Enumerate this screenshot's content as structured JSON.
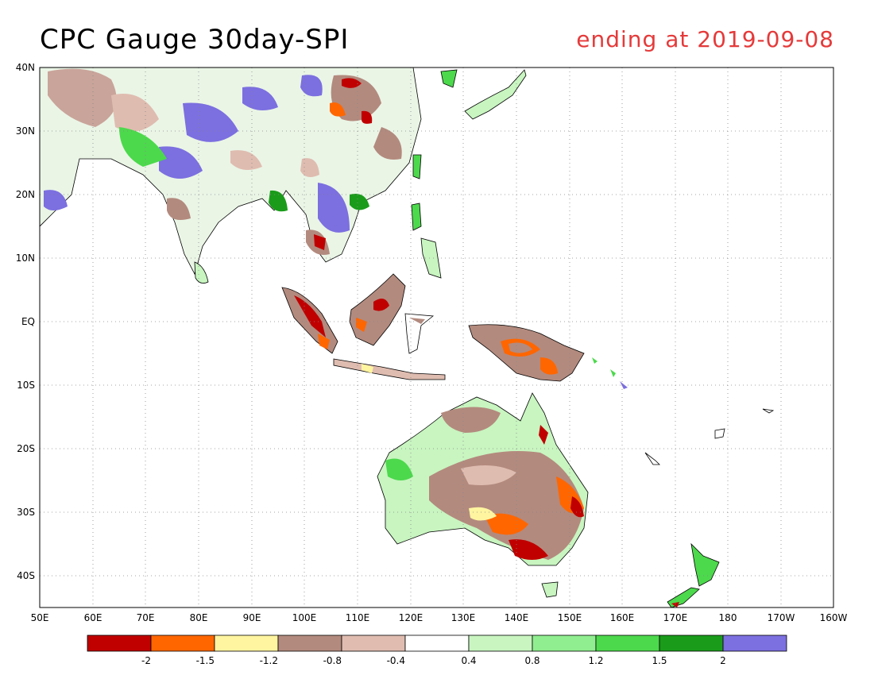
{
  "title": "CPC Gauge 30day-SPI",
  "date_text": "ending at 2019-09-08",
  "lat_labels": [
    "40N",
    "30N",
    "20N",
    "10N",
    "EQ",
    "10S",
    "20S",
    "30S",
    "40S"
  ],
  "lon_labels": [
    "50E",
    "60E",
    "70E",
    "80E",
    "90E",
    "100E",
    "110E",
    "120E",
    "130E",
    "140E",
    "150E",
    "160E",
    "170E",
    "180",
    "170W",
    "160W"
  ],
  "colorbar": {
    "colors": [
      "#c00000",
      "#ff6600",
      "#fff5a0",
      "#b38a7e",
      "#e0bcb0",
      "#ffffff",
      "#c8f5c0",
      "#90ee90",
      "#4cd94c",
      "#1a9c1a",
      "#7c6fe0"
    ],
    "labels": [
      "-2",
      "-1.5",
      "-1.2",
      "-0.8",
      "-0.4",
      "0.4",
      "0.8",
      "1.2",
      "1.5",
      "2"
    ]
  }
}
